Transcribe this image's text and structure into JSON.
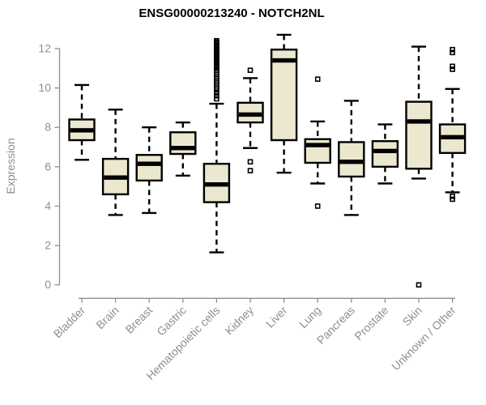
{
  "chart_data": {
    "type": "boxplot",
    "title": "ENSG00000213240 - NOTCH2NL",
    "ylabel": "Expression",
    "xlabel": "",
    "ylim": [
      0,
      12
    ],
    "yticks": [
      0,
      2,
      4,
      6,
      8,
      10,
      12
    ],
    "grid": false,
    "legend": false,
    "categories": [
      "Bladder",
      "Brain",
      "Breast",
      "Gastric",
      "Hematopoietic cells",
      "Kidney",
      "Liver",
      "Lung",
      "Pancreas",
      "Prostate",
      "Skin",
      "Unknown / Other"
    ],
    "series": [
      {
        "name": "Bladder",
        "whisker_low": 6.35,
        "q1": 7.35,
        "median": 7.85,
        "q3": 8.4,
        "whisker_high": 10.15,
        "outliers": []
      },
      {
        "name": "Brain",
        "whisker_low": 3.55,
        "q1": 4.6,
        "median": 5.45,
        "q3": 6.4,
        "whisker_high": 8.9,
        "outliers": []
      },
      {
        "name": "Breast",
        "whisker_low": 3.65,
        "q1": 5.3,
        "median": 6.15,
        "q3": 6.6,
        "whisker_high": 8.0,
        "outliers": []
      },
      {
        "name": "Gastric",
        "whisker_low": 5.55,
        "q1": 6.65,
        "median": 6.95,
        "q3": 7.75,
        "whisker_high": 8.25,
        "outliers": []
      },
      {
        "name": "Hematopoietic cells",
        "whisker_low": 1.65,
        "q1": 4.2,
        "median": 5.1,
        "q3": 6.15,
        "whisker_high": 9.2,
        "outliers": [
          12.4,
          12.33,
          12.27,
          12.2,
          12.13,
          12.07,
          12.0,
          11.93,
          11.87,
          11.8,
          11.73,
          11.67,
          11.6,
          11.53,
          11.47,
          11.4,
          11.33,
          11.27,
          11.2,
          11.13,
          11.07,
          11.0,
          10.9,
          10.8,
          10.7,
          10.6,
          10.5,
          10.4,
          10.3,
          10.2,
          10.1,
          10.0,
          9.9,
          9.75,
          9.6,
          9.45
        ]
      },
      {
        "name": "Kidney",
        "whisker_low": 6.95,
        "q1": 8.25,
        "median": 8.65,
        "q3": 9.25,
        "whisker_high": 10.5,
        "outliers": [
          10.9,
          6.25,
          5.8
        ]
      },
      {
        "name": "Liver",
        "whisker_low": 5.7,
        "q1": 7.35,
        "median": 11.4,
        "q3": 11.95,
        "whisker_high": 12.7,
        "outliers": []
      },
      {
        "name": "Lung",
        "whisker_low": 5.15,
        "q1": 6.2,
        "median": 7.1,
        "q3": 7.4,
        "whisker_high": 8.3,
        "outliers": [
          10.45,
          4.0
        ]
      },
      {
        "name": "Pancreas",
        "whisker_low": 3.55,
        "q1": 5.5,
        "median": 6.25,
        "q3": 7.25,
        "whisker_high": 9.35,
        "outliers": []
      },
      {
        "name": "Prostate",
        "whisker_low": 5.15,
        "q1": 6.0,
        "median": 6.8,
        "q3": 7.3,
        "whisker_high": 8.15,
        "outliers": []
      },
      {
        "name": "Skin",
        "whisker_low": 5.4,
        "q1": 5.9,
        "median": 8.3,
        "q3": 9.3,
        "whisker_high": 12.1,
        "outliers": [
          0.0
        ]
      },
      {
        "name": "Unknown / Other",
        "whisker_low": 4.7,
        "q1": 6.7,
        "median": 7.5,
        "q3": 8.15,
        "whisker_high": 9.95,
        "outliers": [
          11.95,
          11.8,
          11.1,
          10.95,
          4.5,
          4.35
        ]
      }
    ],
    "colors": {
      "box_fill": "#ece8cf",
      "box_stroke": "#000000",
      "median": "#000000",
      "whisker": "#000000",
      "axis": "#8e8e8e",
      "tick_label": "#8e8e8e",
      "title": "#000000"
    }
  }
}
